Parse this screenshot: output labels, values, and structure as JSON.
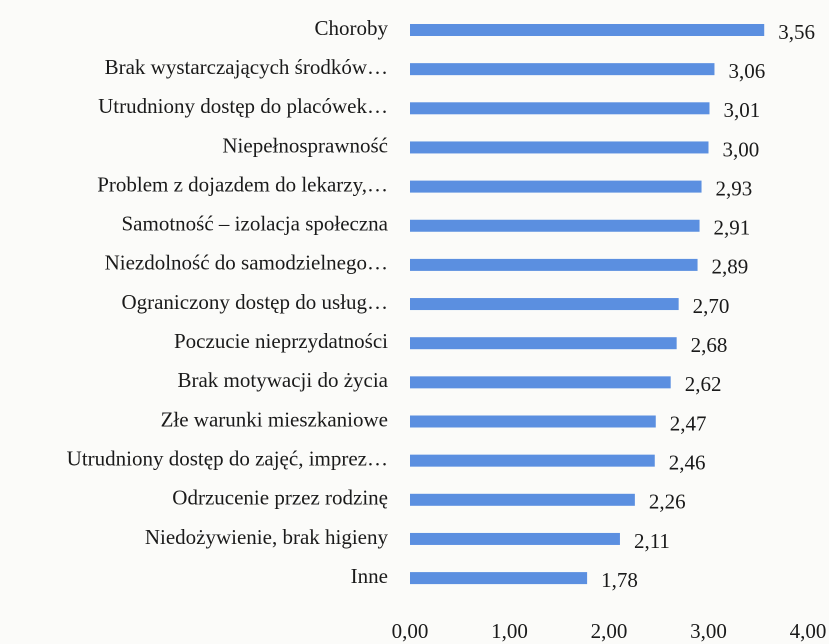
{
  "chart_data": {
    "type": "hbar",
    "categories": [
      "Choroby",
      "Brak wystarczających środków…",
      "Utrudniony dostęp do placówek…",
      "Niepełnosprawność",
      "Problem z dojazdem do lekarzy,…",
      "Samotność – izolacja społeczna",
      "Niezdolność do samodzielnego…",
      "Ograniczony dostęp do usług…",
      "Poczucie nieprzydatności",
      "Brak motywacji do życia",
      "Złe warunki mieszkaniowe",
      "Utrudniony dostęp do zajęć, imprez…",
      "Odrzucenie przez rodzinę",
      "Niedożywienie, brak higieny",
      "Inne"
    ],
    "values": [
      3.56,
      3.06,
      3.01,
      3.0,
      2.93,
      2.91,
      2.89,
      2.7,
      2.68,
      2.62,
      2.47,
      2.46,
      2.26,
      2.11,
      1.78
    ],
    "value_labels": [
      "3,56",
      "3,06",
      "3,01",
      "3,00",
      "2,93",
      "2,91",
      "2,89",
      "2,70",
      "2,68",
      "2,62",
      "2,47",
      "2,46",
      "2,26",
      "2,11",
      "1,78"
    ],
    "color": "#5b8fe0",
    "xlim": [
      0,
      4
    ],
    "xticks": [
      {
        "value": 0,
        "label": "0,00"
      },
      {
        "value": 1,
        "label": "1,00"
      },
      {
        "value": 2,
        "label": "2,00"
      },
      {
        "value": 3,
        "label": "3,00"
      },
      {
        "value": 4,
        "label": "4,00"
      }
    ],
    "grid": false
  }
}
